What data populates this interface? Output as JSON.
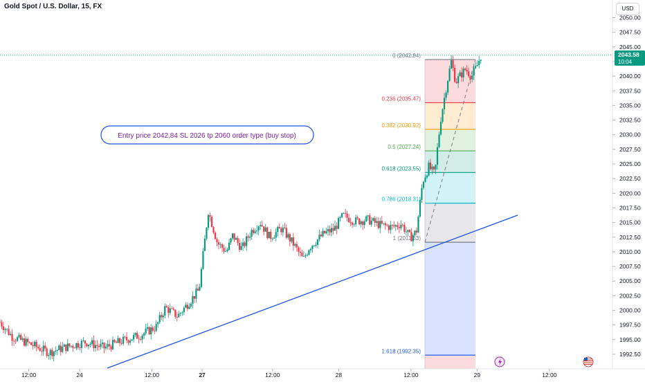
{
  "header": {
    "title": "Gold Spot / U.S. Dollar, 15, FX",
    "currency_button": "USD"
  },
  "price_tag": {
    "value": "2043.58",
    "countdown": "10:04",
    "color": "#089981"
  },
  "annotation": {
    "text": "Entry price 2042,84 SL 2026 tp 2060 order type (buy stop)",
    "color": "#7b1fa2",
    "border": "#1e53e5"
  },
  "chart_data": {
    "type": "candlestick",
    "title": "Gold Spot / U.S. Dollar, 15, FX",
    "ylim": [
      1990.8,
      2054.4
    ],
    "y_ticks": [
      "2050.00",
      "2047.50",
      "2045.00",
      "2042.50",
      "2040.00",
      "2037.50",
      "2035.00",
      "2032.50",
      "2030.00",
      "2027.50",
      "2025.00",
      "2022.50",
      "2020.00",
      "2017.50",
      "2015.00",
      "2012.50",
      "2010.00",
      "2007.50",
      "2005.00",
      "2002.50",
      "2000.00",
      "1997.50",
      "1995.00",
      "1992.50"
    ],
    "x_ticks": [
      {
        "label": "12:00",
        "bold": false,
        "at": 0.047
      },
      {
        "label": "24",
        "bold": false,
        "at": 0.13
      },
      {
        "label": "12:00",
        "bold": false,
        "at": 0.248
      },
      {
        "label": "27",
        "bold": true,
        "at": 0.33
      },
      {
        "label": "12:00",
        "bold": false,
        "at": 0.445
      },
      {
        "label": "28",
        "bold": false,
        "at": 0.553
      },
      {
        "label": "12:00",
        "bold": false,
        "at": 0.671
      },
      {
        "label": "29",
        "bold": false,
        "at": 0.779
      },
      {
        "label": "12:00",
        "bold": false,
        "at": 0.897
      }
    ],
    "up_color": "#089981",
    "down_color": "#f23645",
    "fibonacci": [
      {
        "label": "0 (2042.84)",
        "level": 2042.84,
        "color": "#787b86"
      },
      {
        "label": "0.236 (2035.47)",
        "level": 2035.47,
        "color": "#f23645"
      },
      {
        "label": "0.382 (2030.92)",
        "level": 2030.92,
        "color": "#ff9800"
      },
      {
        "label": "0.5 (2027.24)",
        "level": 2027.24,
        "color": "#4caf50"
      },
      {
        "label": "0.618 (2023.55)",
        "level": 2023.55,
        "color": "#089981"
      },
      {
        "label": "0.786 (2018.31)",
        "level": 2018.31,
        "color": "#00bcd4"
      },
      {
        "label": "1 (2011.63)",
        "level": 2011.63,
        "color": "#787b86"
      },
      {
        "label": "1.618 (1992.35)",
        "level": 1992.35,
        "color": "#2962ff"
      }
    ],
    "fib_zones": [
      "#f23645",
      "#ff9800",
      "#4caf50",
      "#089981",
      "#00bcd4",
      "#787b86",
      "#2962ff",
      "#f23645"
    ],
    "trendline": {
      "color": "#1e53e5"
    },
    "waypoints": [
      [
        0.0,
        1998.0
      ],
      [
        0.02,
        1995.5
      ],
      [
        0.05,
        1994.2
      ],
      [
        0.08,
        1992.8
      ],
      [
        0.11,
        1993.8
      ],
      [
        0.14,
        1994.6
      ],
      [
        0.17,
        1993.6
      ],
      [
        0.2,
        1994.8
      ],
      [
        0.23,
        1995.8
      ],
      [
        0.255,
        1997.2
      ],
      [
        0.27,
        2000.5
      ],
      [
        0.29,
        1999.0
      ],
      [
        0.325,
        2003.5
      ],
      [
        0.34,
        2017.0
      ],
      [
        0.355,
        2011.5
      ],
      [
        0.37,
        2010.0
      ],
      [
        0.38,
        2012.8
      ],
      [
        0.395,
        2010.5
      ],
      [
        0.41,
        2013.5
      ],
      [
        0.425,
        2015.0
      ],
      [
        0.44,
        2012.5
      ],
      [
        0.46,
        2014.0
      ],
      [
        0.48,
        2011.2
      ],
      [
        0.495,
        2008.6
      ],
      [
        0.505,
        2010.8
      ],
      [
        0.53,
        2013.2
      ],
      [
        0.545,
        2013.8
      ],
      [
        0.56,
        2016.2
      ],
      [
        0.58,
        2015.2
      ],
      [
        0.6,
        2015.5
      ],
      [
        0.62,
        2014.6
      ],
      [
        0.64,
        2014.2
      ],
      [
        0.655,
        2014.8
      ],
      [
        0.67,
        2012.4
      ],
      [
        0.68,
        2013.5
      ],
      [
        0.69,
        2022.0
      ],
      [
        0.7,
        2024.5
      ],
      [
        0.71,
        2023.2
      ],
      [
        0.715,
        2028.5
      ],
      [
        0.72,
        2033.0
      ],
      [
        0.73,
        2039.0
      ],
      [
        0.737,
        2042.6
      ],
      [
        0.744,
        2039.0
      ],
      [
        0.752,
        2040.2
      ],
      [
        0.76,
        2041.2
      ],
      [
        0.77,
        2040.0
      ],
      [
        0.778,
        2041.5
      ],
      [
        0.785,
        2043.5
      ]
    ],
    "n_candles": 278
  }
}
